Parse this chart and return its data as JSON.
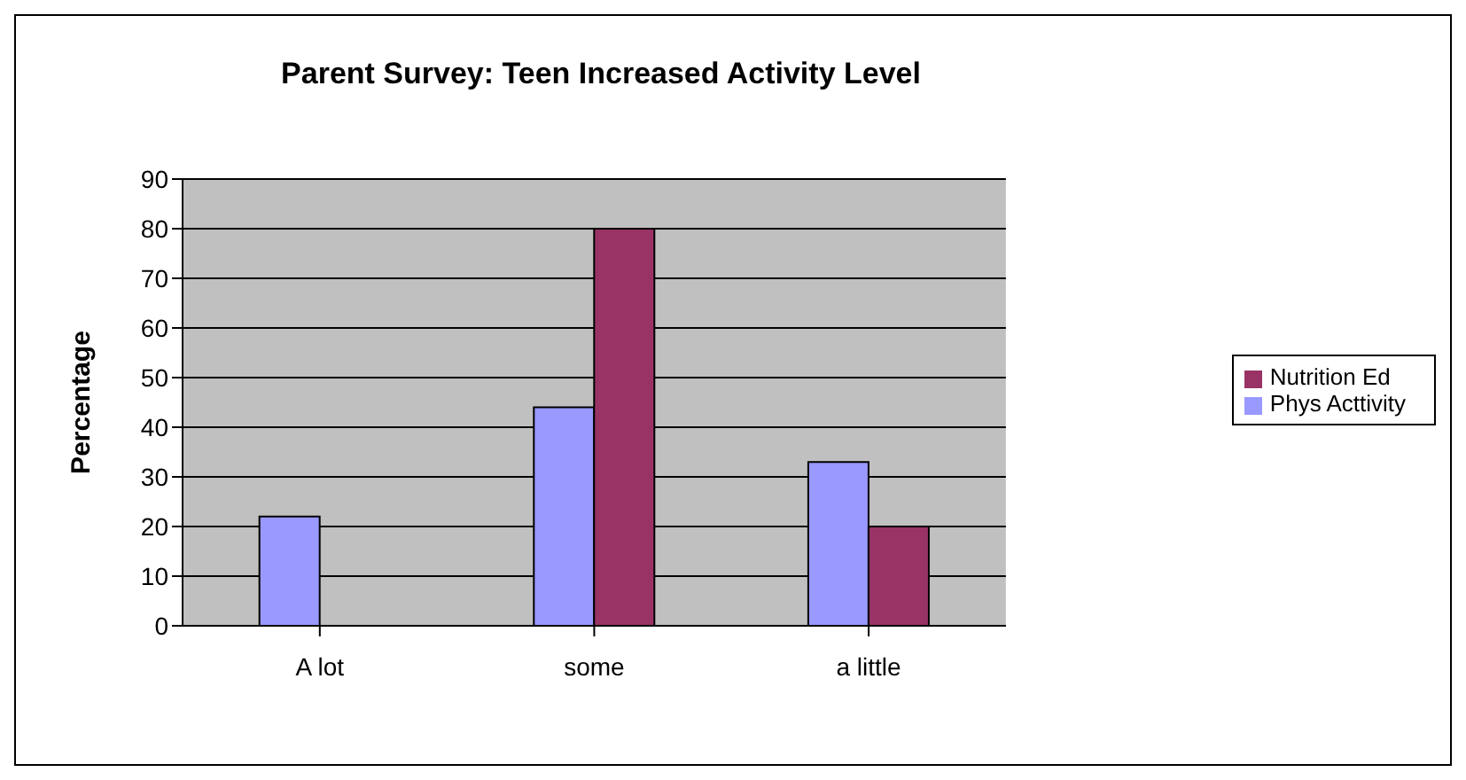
{
  "chart_data": {
    "type": "bar",
    "title": "Parent Survey: Teen Increased Activity Level",
    "ylabel": "Percentage",
    "categories": [
      "A lot",
      "some",
      "a little"
    ],
    "series": [
      {
        "name": "Phys Acttivity",
        "color": "#9999ff",
        "values": [
          22,
          44,
          33
        ]
      },
      {
        "name": "Nutrition Ed",
        "color": "#993366",
        "values": [
          0,
          80,
          20
        ]
      }
    ],
    "ylim": [
      0,
      90
    ],
    "yticks": [
      0,
      10,
      20,
      30,
      40,
      50,
      60,
      70,
      80,
      90
    ],
    "grid": "y",
    "legend": "right"
  }
}
